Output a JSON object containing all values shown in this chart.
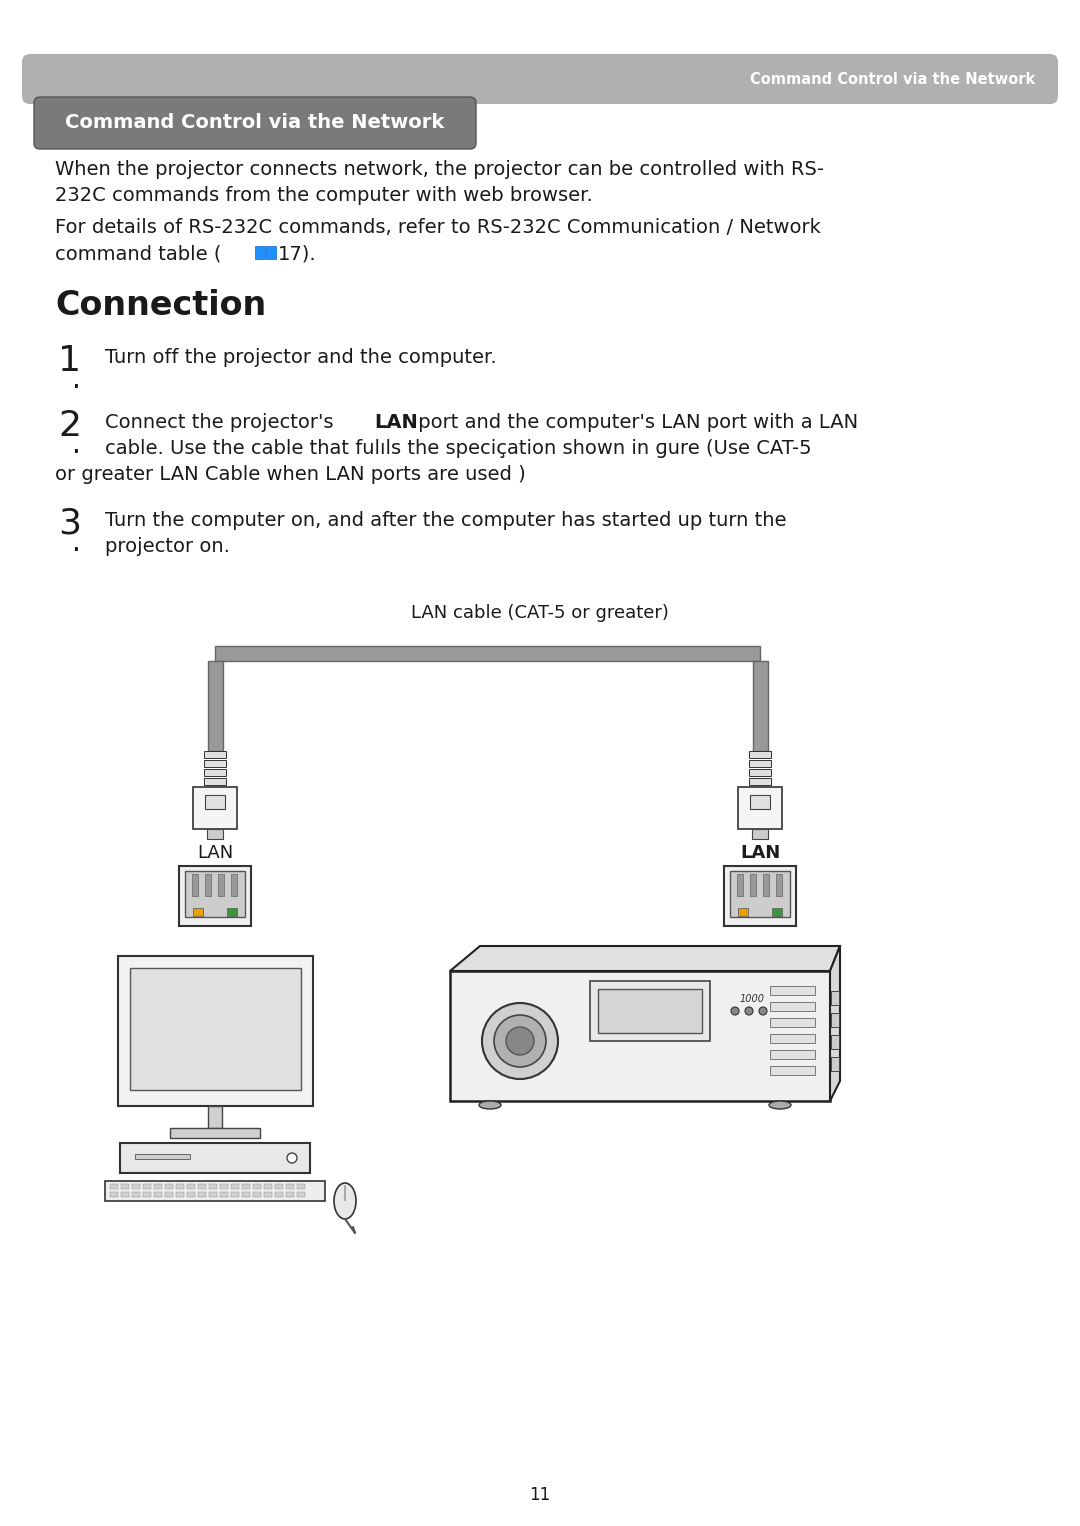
{
  "page_bg": "#ffffff",
  "header_bar_color": "#b0b0b0",
  "header_text": "Command Control via the Network",
  "header_text_color": "#ffffff",
  "title_badge_bg": "#7a7a7a",
  "title_badge_text": "Command Control via the Network",
  "title_badge_text_color": "#ffffff",
  "body_text_color": "#1a1a1a",
  "section_title": "Connection",
  "diagram_label": "LAN cable (CAT-5 or greater)",
  "lan_label_left": "LAN",
  "lan_label_right": "LAN",
  "page_number": "11",
  "cable_color": "#999999",
  "cable_edge_color": "#666666"
}
